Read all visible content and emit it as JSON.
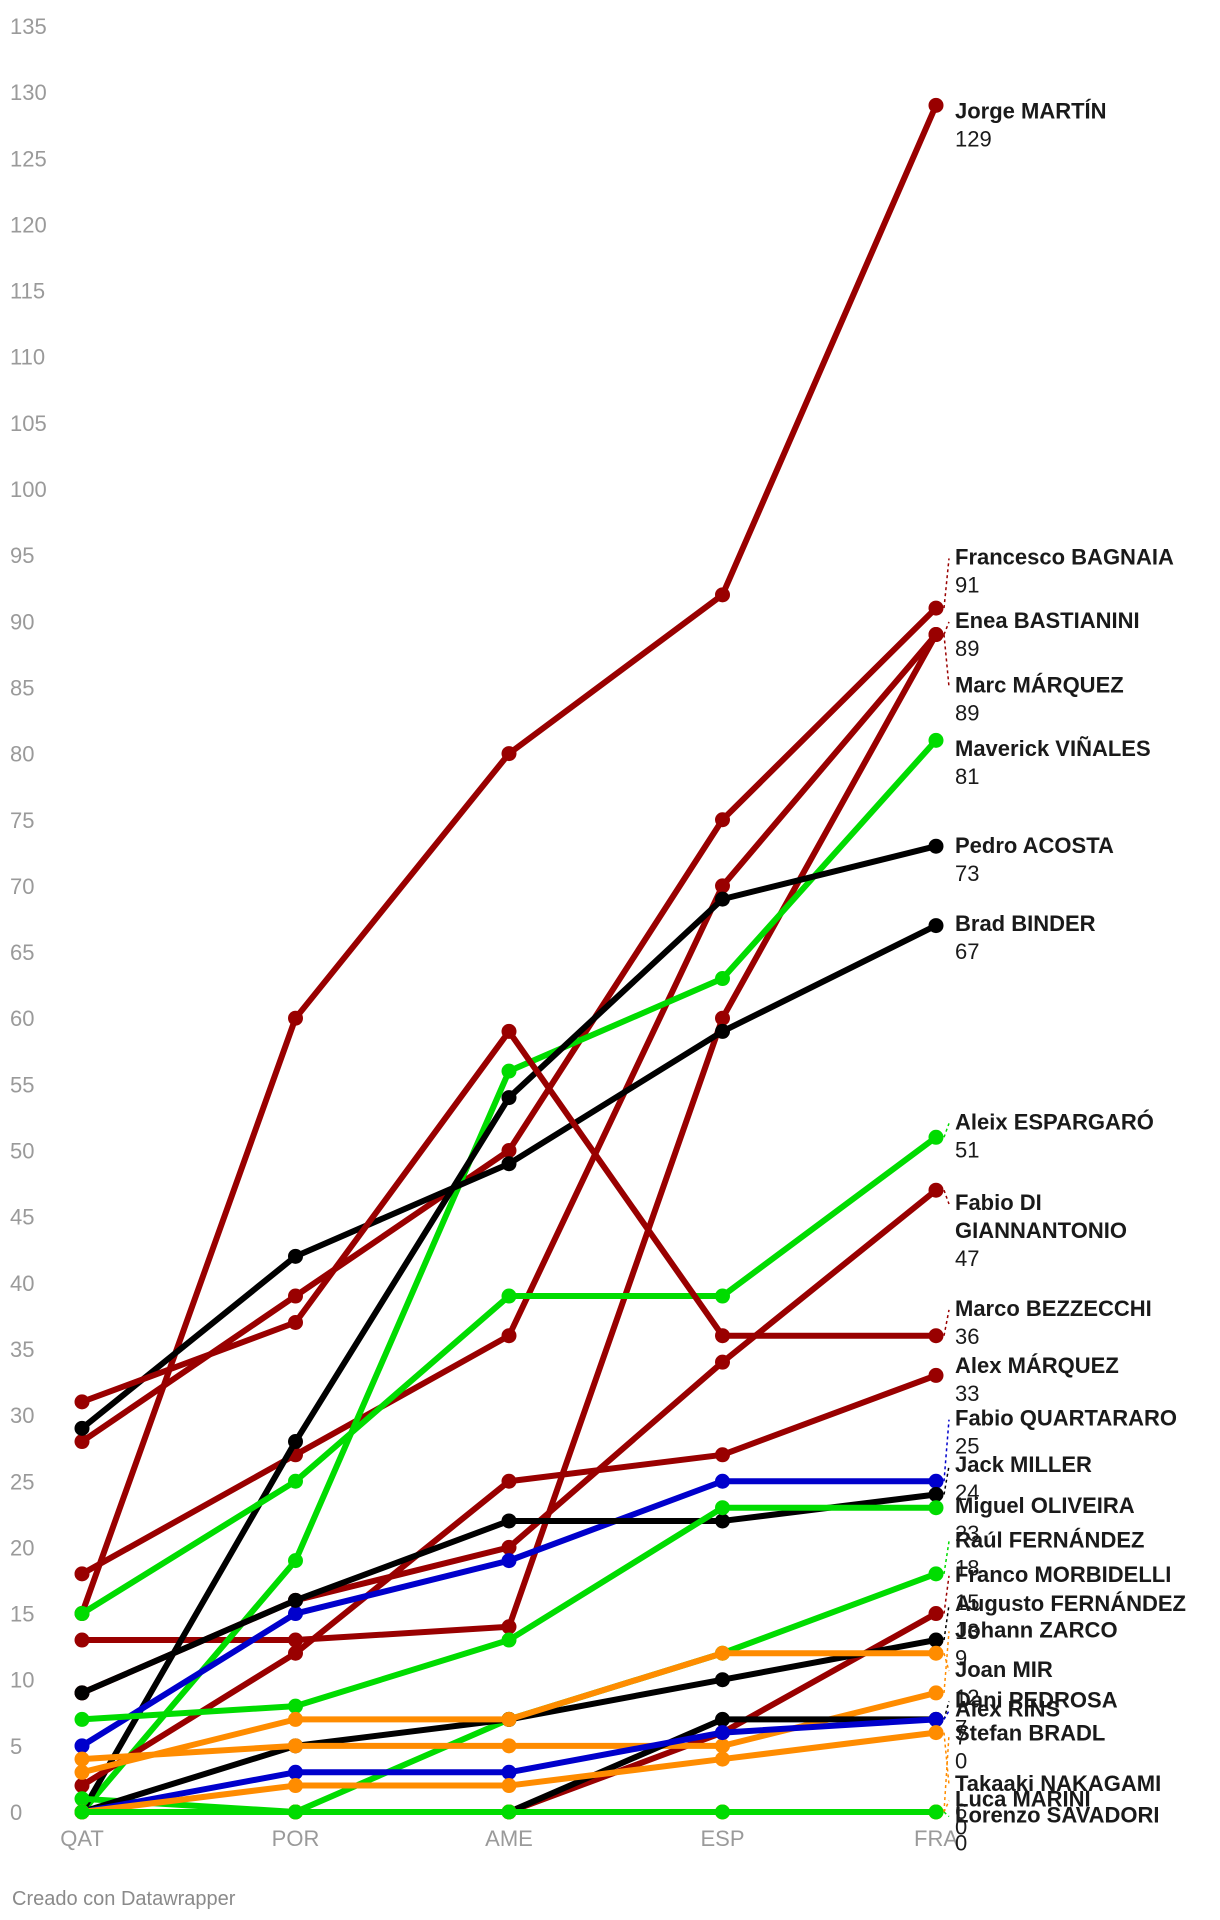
{
  "chart_data": {
    "type": "line",
    "categories": [
      "QAT",
      "POR",
      "AME",
      "ESP",
      "FRA"
    ],
    "ylim": [
      0,
      135
    ],
    "yticks": [
      0,
      5,
      10,
      15,
      20,
      25,
      30,
      35,
      40,
      45,
      50,
      55,
      60,
      65,
      70,
      75,
      80,
      85,
      90,
      95,
      100,
      105,
      110,
      115,
      120,
      125,
      130,
      135
    ],
    "grid": false,
    "colors": {
      "ducati": "#990000",
      "aprilia": "#00dc00",
      "ktm": "#000000",
      "yamaha": "#0000cc",
      "honda": "#ff8c00"
    },
    "series": [
      {
        "name": "Jorge MARTÍN",
        "name_lines": [
          "Jorge MARTÍN"
        ],
        "final_label": "129",
        "color": "#990000",
        "values": [
          15,
          60,
          80,
          92,
          129
        ]
      },
      {
        "name": "Francesco BAGNAIA",
        "name_lines": [
          "Francesco BAGNAIA"
        ],
        "final_label": "91",
        "color": "#990000",
        "values": [
          28,
          39,
          50,
          75,
          91
        ]
      },
      {
        "name": "Enea BASTIANINI",
        "name_lines": [
          "Enea BASTIANINI"
        ],
        "final_label": "89",
        "color": "#990000",
        "values": [
          18,
          27,
          36,
          70,
          89
        ]
      },
      {
        "name": "Marc MÁRQUEZ",
        "name_lines": [
          "Marc MÁRQUEZ"
        ],
        "final_label": "89",
        "color": "#990000",
        "values": [
          13,
          13,
          14,
          60,
          89
        ]
      },
      {
        "name": "Maverick VIÑALES",
        "name_lines": [
          "Maverick VIÑALES"
        ],
        "final_label": "81",
        "color": "#00dc00",
        "values": [
          0,
          19,
          56,
          63,
          81
        ]
      },
      {
        "name": "Pedro ACOSTA",
        "name_lines": [
          "Pedro ACOSTA"
        ],
        "final_label": "73",
        "color": "#000000",
        "values": [
          0,
          28,
          54,
          69,
          73
        ]
      },
      {
        "name": "Brad BINDER",
        "name_lines": [
          "Brad BINDER"
        ],
        "final_label": "67",
        "color": "#000000",
        "values": [
          29,
          42,
          49,
          59,
          67
        ]
      },
      {
        "name": "Aleix ESPARGARÓ",
        "name_lines": [
          "Aleix ESPARGARÓ"
        ],
        "final_label": "51",
        "color": "#00dc00",
        "values": [
          15,
          25,
          39,
          39,
          51
        ]
      },
      {
        "name": "Fabio DI GIANNANTONIO",
        "name_lines": [
          "Fabio DI",
          "GIANNANTONIO"
        ],
        "final_label": "47",
        "color": "#990000",
        "values": [
          9,
          16,
          20,
          34,
          47
        ]
      },
      {
        "name": "Marco BEZZECCHI",
        "name_lines": [
          "Marco BEZZECCHI"
        ],
        "final_label": "36",
        "color": "#990000",
        "values": [
          31,
          37,
          59,
          36,
          36
        ]
      },
      {
        "name": "Alex MÁRQUEZ",
        "name_lines": [
          "Alex MÁRQUEZ"
        ],
        "final_label": "33",
        "color": "#990000",
        "values": [
          2,
          12,
          25,
          27,
          33
        ]
      },
      {
        "name": "Fabio QUARTARARO",
        "name_lines": [
          "Fabio QUARTARARO"
        ],
        "final_label": "25",
        "color": "#0000cc",
        "values": [
          5,
          15,
          19,
          25,
          25
        ]
      },
      {
        "name": "Jack MILLER",
        "name_lines": [
          "Jack MILLER"
        ],
        "final_label": "24",
        "color": "#000000",
        "values": [
          9,
          16,
          22,
          22,
          24
        ]
      },
      {
        "name": "Miguel OLIVEIRA",
        "name_lines": [
          "Miguel OLIVEIRA"
        ],
        "final_label": "23",
        "color": "#00dc00",
        "values": [
          7,
          8,
          13,
          23,
          23
        ]
      },
      {
        "name": "Raúl FERNÁNDEZ",
        "name_lines": [
          "Raúl FERNÁNDEZ"
        ],
        "final_label": "18",
        "color": "#00dc00",
        "values": [
          1,
          0,
          7,
          12,
          18
        ]
      },
      {
        "name": "Franco MORBIDELLI",
        "name_lines": [
          "Franco MORBIDELLI"
        ],
        "final_label": "15",
        "color": "#990000",
        "values": [
          0,
          0,
          0,
          6,
          15
        ]
      },
      {
        "name": "Augusto FERNÁNDEZ",
        "name_lines": [
          "Augusto FERNÁNDEZ"
        ],
        "final_label": "13",
        "color": "#000000",
        "values": [
          0,
          5,
          7,
          10,
          13
        ]
      },
      {
        "name": "Johann ZARCO",
        "name_lines": [
          "Johann ZARCO"
        ],
        "final_label": "9",
        "color": "#ff8c00",
        "values": [
          4,
          5,
          5,
          5,
          9
        ]
      },
      {
        "name": "Joan MIR",
        "name_lines": [
          "Joan MIR"
        ],
        "final_label": "12",
        "color": "#ff8c00",
        "values": [
          3,
          7,
          7,
          12,
          12
        ]
      },
      {
        "name": "Dani PEDROSA",
        "name_lines": [
          "Dani PEDROSA"
        ],
        "final_label": "7",
        "color": "#000000",
        "values": [
          0,
          0,
          0,
          7,
          7
        ]
      },
      {
        "name": "Alex RINS",
        "name_lines": [
          "Alex RINS"
        ],
        "final_label": "7",
        "color": "#0000cc",
        "values": [
          0,
          3,
          3,
          6,
          7
        ]
      },
      {
        "name": "Stefan BRADL",
        "name_lines": [
          "Stefan BRADL"
        ],
        "final_label": "0",
        "color": "#ff8c00",
        "values": [
          0,
          0,
          0,
          0,
          0
        ]
      },
      {
        "name": "Takaaki NAKAGAMI",
        "name_lines": [
          "Takaaki NAKAGAMI"
        ],
        "final_label": "6",
        "color": "#ff8c00",
        "values": [
          0,
          2,
          2,
          4,
          6
        ]
      },
      {
        "name": "Luca MARINI",
        "name_lines": [
          "Luca MARINI"
        ],
        "final_label": "0",
        "color": "#ff8c00",
        "values": [
          0,
          0,
          0,
          0,
          0
        ]
      },
      {
        "name": "Lorenzo SAVADORI",
        "name_lines": [
          "Lorenzo SAVADORI"
        ],
        "final_label": "0",
        "color": "#00dc00",
        "values": [
          0,
          0,
          0,
          0,
          0
        ]
      }
    ],
    "labels": [
      {
        "series": "Jorge MARTÍN",
        "ly": 128,
        "leader": false
      },
      {
        "series": "Francesco BAGNAIA",
        "ly": 94.3,
        "leader": true
      },
      {
        "series": "Enea BASTIANINI",
        "ly": 89.5,
        "leader": true
      },
      {
        "series": "Marc MÁRQUEZ",
        "ly": 84.6,
        "leader": true
      },
      {
        "series": "Maverick VIÑALES",
        "ly": 79.8,
        "leader": false
      },
      {
        "series": "Pedro ACOSTA",
        "ly": 72.5,
        "leader": false
      },
      {
        "series": "Brad BINDER",
        "ly": 66.6,
        "leader": false
      },
      {
        "series": "Aleix ESPARGARÓ",
        "ly": 51.6,
        "leader": true
      },
      {
        "series": "Fabio DI GIANNANTONIO",
        "ly": 45.5,
        "leader": true
      },
      {
        "series": "Marco BEZZECCHI",
        "ly": 37.5,
        "leader": true
      },
      {
        "series": "Alex MÁRQUEZ",
        "ly": 33.2,
        "leader": false
      },
      {
        "series": "Fabio QUARTARARO",
        "ly": 29.2,
        "leader": true
      },
      {
        "series": "Jack MILLER",
        "ly": 25.7,
        "leader": true
      },
      {
        "series": "Miguel OLIVEIRA",
        "ly": 22.6,
        "leader": false
      },
      {
        "series": "Raúl FERNÁNDEZ",
        "ly": 20.0,
        "leader": true
      },
      {
        "series": "Franco MORBIDELLI",
        "ly": 17.4,
        "leader": true
      },
      {
        "series": "Augusto FERNÁNDEZ",
        "ly": 15.2,
        "leader": true
      },
      {
        "series": "Johann ZARCO",
        "ly": 13.2,
        "leader": true
      },
      {
        "series": "Joan MIR",
        "ly": 10.2,
        "leader": true
      },
      {
        "series": "Dani PEDROSA",
        "ly": 7.9,
        "leader": true
      },
      {
        "series": "Alex RINS",
        "ly": 7.2,
        "leader": true
      },
      {
        "series": "Stefan BRADL",
        "ly": 5.4,
        "leader": true
      },
      {
        "series": "Takaaki NAKAGAMI",
        "ly": 1.6,
        "leader": true
      },
      {
        "series": "Luca MARINI",
        "ly": 0.4,
        "leader": true
      },
      {
        "series": "Lorenzo SAVADORI",
        "ly": -0.8,
        "leader": true
      }
    ]
  },
  "footer": "Creado con Datawrapper"
}
